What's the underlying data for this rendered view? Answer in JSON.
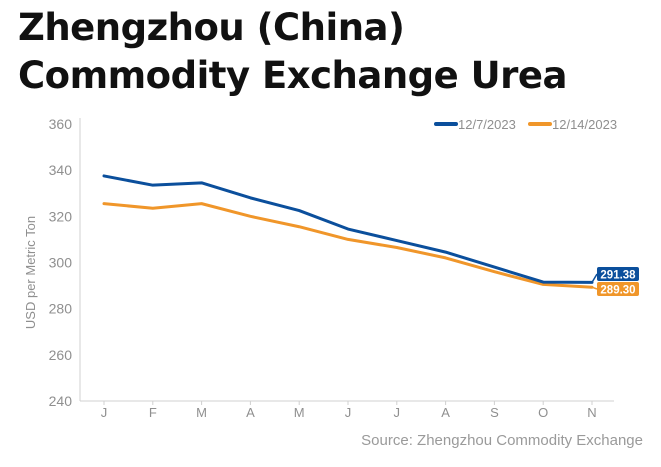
{
  "chart_data": {
    "type": "line",
    "title": "Zhengzhou (China) Commodity Exchange Urea",
    "ylabel": "USD per Metric Ton",
    "xlabel": "",
    "categories": [
      "J",
      "F",
      "M",
      "A",
      "M",
      "J",
      "J",
      "A",
      "S",
      "O",
      "N"
    ],
    "ylim": [
      240,
      360
    ],
    "yticks": [
      240,
      260,
      280,
      300,
      320,
      340,
      360
    ],
    "grid": false,
    "legend_position": "top-right",
    "series": [
      {
        "name": "12/7/2023",
        "color": "#0b4f9c",
        "values": [
          337.5,
          333.5,
          334.5,
          328,
          322.5,
          314.5,
          309.5,
          304.5,
          298,
          291.5,
          291.38
        ],
        "end_label": "291.38"
      },
      {
        "name": "12/14/2023",
        "color": "#f0962a",
        "values": [
          325.5,
          323.5,
          325.5,
          320,
          315.5,
          310,
          306.5,
          302,
          296,
          290.5,
          289.3
        ],
        "end_label": "289.30"
      }
    ],
    "source": "Source: Zhengzhou Commodity Exchange"
  }
}
